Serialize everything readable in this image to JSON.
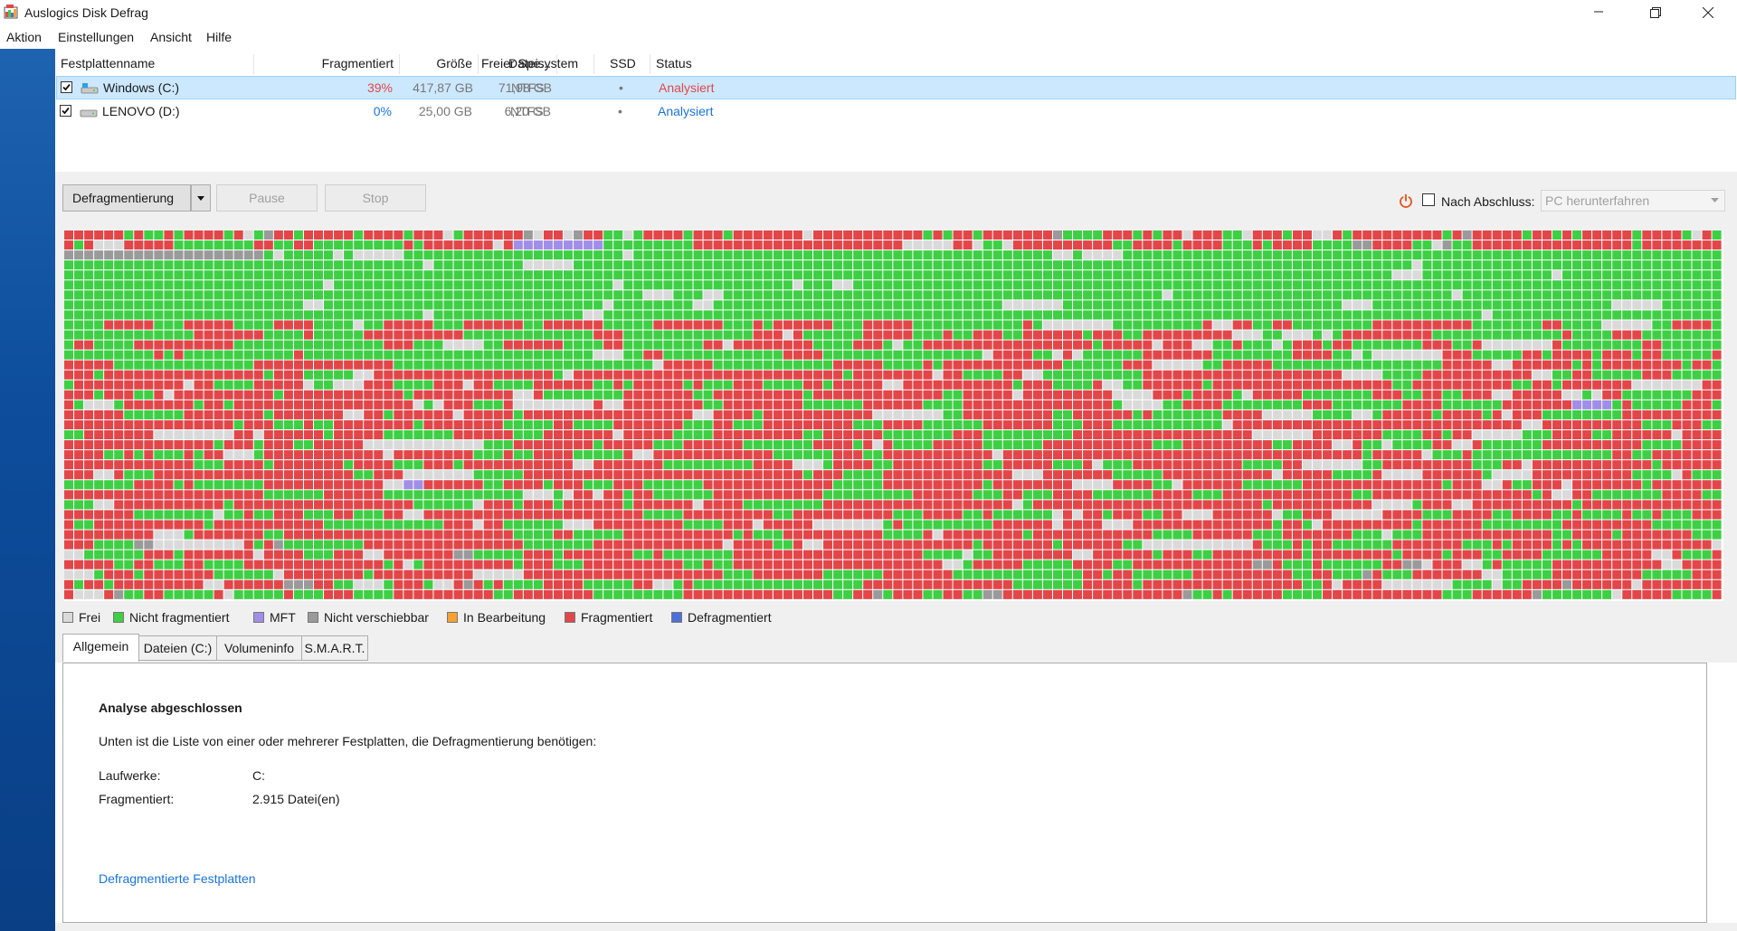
{
  "window": {
    "title": "Auslogics Disk Defrag"
  },
  "menu": [
    "Aktion",
    "Einstellungen",
    "Ansicht",
    "Hilfe"
  ],
  "drive_table": {
    "columns": [
      "Festplattenname",
      "Fragmentiert",
      "Größe",
      "Freier Spe...",
      "Dateisystem",
      "SSD",
      "Status"
    ],
    "rows": [
      {
        "checked": true,
        "name": "Windows (C:)",
        "fragmented": "39%",
        "size": "417,87 GB",
        "free": "71,98 GB",
        "fs": "NTFS",
        "ssd": "•",
        "status": "Analysiert",
        "selected": true
      },
      {
        "checked": true,
        "name": "LENOVO (D:)",
        "fragmented": "0%",
        "size": "25,00 GB",
        "free": "6,20 GB",
        "fs": "NTFS",
        "ssd": "•",
        "status": "Analysiert",
        "selected": false
      }
    ]
  },
  "toolbar": {
    "defrag_label": "Defragmentierung",
    "pause_label": "Pause",
    "stop_label": "Stop",
    "after_label": "Nach Abschluss:",
    "after_value": "PC herunterfahren",
    "after_checked": false
  },
  "legend": [
    {
      "label": "Frei",
      "color": "#dadada"
    },
    {
      "label": "Nicht fragmentiert",
      "color": "#3ecf45"
    },
    {
      "label": "MFT",
      "color": "#a08ee8"
    },
    {
      "label": "Nicht verschiebbar",
      "color": "#9a9a9a"
    },
    {
      "label": "In Bearbeitung",
      "color": "#f5a234"
    },
    {
      "label": "Fragmentiert",
      "color": "#e34649"
    },
    {
      "label": "Defragmentiert",
      "color": "#4f6fd8"
    }
  ],
  "tabs": [
    "Allgemein",
    "Dateien (C:)",
    "Volumeninfo",
    "S.M.A.R.T."
  ],
  "panel": {
    "heading": "Analyse abgeschlossen",
    "description": "Unten ist die Liste von einer oder mehrerer Festplatten, die Defragmentierung benötigen:",
    "drives_label": "Laufwerke:",
    "drives_value": "C:",
    "fragmented_label": "Fragmentiert:",
    "fragmented_value": "2.915 Datei(en)",
    "link": "Defragmentierte Festplatten"
  },
  "colors": {
    "accent_red": "#e34649",
    "link_blue": "#1a73d9",
    "selection": "#cce8ff",
    "taskbar_blue": "#0d4d9c"
  }
}
